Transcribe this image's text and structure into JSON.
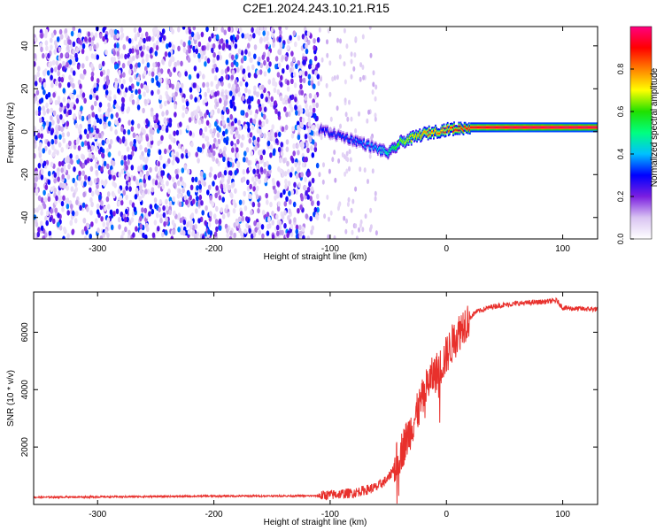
{
  "title": "C2E1.2024.243.10.21.R15",
  "chart_data": [
    {
      "type": "heatmap",
      "xlabel": "Height of straight line (km)",
      "ylabel": "Frequency (Hz)",
      "xlim": [
        -355,
        130
      ],
      "ylim": [
        -50,
        49
      ],
      "xticks": [
        -300,
        -200,
        -100,
        0,
        100
      ],
      "yticks": [
        -40,
        -20,
        0,
        20,
        40
      ],
      "colorbar": {
        "label": "Normalized spectral amplitude",
        "range": [
          0.0,
          1.0
        ],
        "ticks": [
          "0.0",
          "0.2",
          "0.4",
          "0.6",
          "0.8"
        ],
        "tick_values": [
          0.0,
          0.2,
          0.4,
          0.6,
          0.8
        ],
        "colors": [
          "#ffffff",
          "#d9c4f2",
          "#7b1fe0",
          "#0000ff",
          "#00c0ff",
          "#00ff80",
          "#20e000",
          "#ffff00",
          "#ff8000",
          "#ff0000",
          "#ff0080"
        ]
      },
      "features": {
        "noise_region_x": [
          -355,
          -110
        ],
        "sparse_region_x": [
          -110,
          -60
        ],
        "carrier_line": {
          "x": [
            -110,
            -80,
            -60,
            -50,
            -40,
            -20,
            0,
            20,
            60,
            100,
            130
          ],
          "y": [
            1,
            -4,
            -8,
            -10,
            -5,
            -1,
            1,
            2,
            2,
            2,
            2
          ],
          "amplitude": [
            0.3,
            0.35,
            0.4,
            0.5,
            0.65,
            0.8,
            0.85,
            0.92,
            0.97,
            0.97,
            0.97
          ]
        }
      },
      "grid": false
    },
    {
      "type": "line",
      "xlabel": "Height of straight line (km)",
      "ylabel": "SNR (10 * v/v)",
      "xlim": [
        -355,
        130
      ],
      "ylim": [
        0,
        7400
      ],
      "xticks": [
        -300,
        -200,
        -100,
        0,
        100
      ],
      "yticks": [
        2000,
        4000,
        6000
      ],
      "color": "#e8302c",
      "profile": {
        "x": [
          -355,
          -200,
          -110,
          -80,
          -60,
          -50,
          -45,
          -35,
          -25,
          -15,
          -5,
          5,
          15,
          25,
          40,
          60,
          80,
          95,
          100,
          110,
          130
        ],
        "y": [
          250,
          290,
          300,
          400,
          600,
          900,
          1300,
          2200,
          3200,
          4300,
          4800,
          5600,
          6300,
          6700,
          6900,
          7000,
          7050,
          7100,
          6850,
          6820,
          6800
        ]
      },
      "grid": false
    }
  ]
}
